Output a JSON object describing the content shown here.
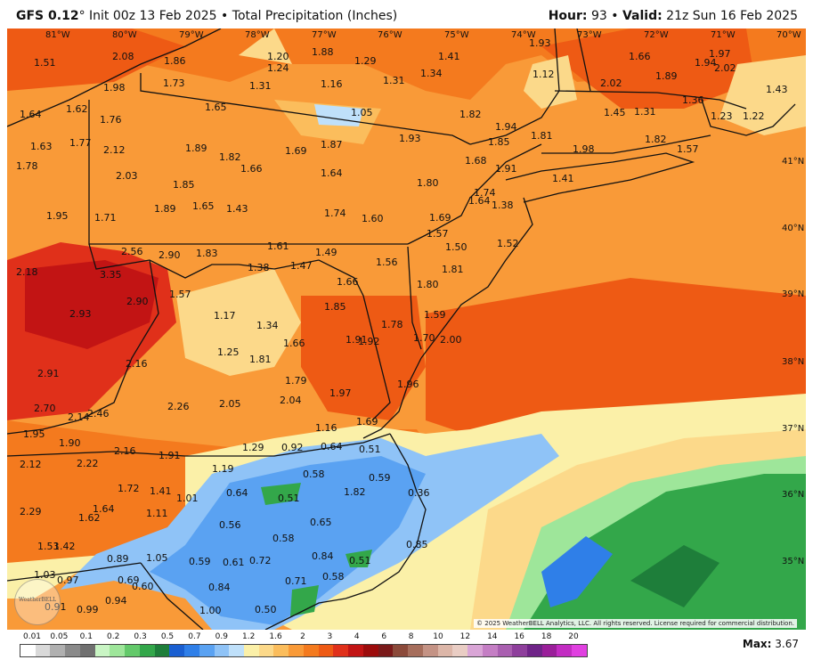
{
  "header": {
    "model": "GFS 0.12",
    "degree": "°",
    "init": "Init 00z 13 Feb 2025",
    "separator": "•",
    "product": "Total Precipitation (Inches)",
    "hour_label": "Hour:",
    "hour_value": "93",
    "valid_label": "Valid:",
    "valid_value": "21z Sun 16 Feb 2025"
  },
  "map": {
    "longitude_labels": [
      "81°W",
      "80°W",
      "79°W",
      "78°W",
      "77°W",
      "76°W",
      "75°W",
      "74°W",
      "73°W",
      "72°W",
      "71°W",
      "70°W"
    ],
    "latitude_labels": [
      "41°N",
      "40°N",
      "39°N",
      "38°N",
      "37°N",
      "36°N",
      "35°N"
    ],
    "point_values": [
      "1.51",
      "2.08",
      "1.86",
      "1.20",
      "1.88",
      "1.29",
      "1.41",
      "1.93",
      "1.66",
      "1.94",
      "1.97",
      "2.02",
      "1.24",
      "1.34",
      "1.12",
      "2.02",
      "1.89",
      "1.43",
      "1.98",
      "1.73",
      "1.31",
      "1.16",
      "1.31",
      "1.64",
      "1.62",
      "1.76",
      "1.65",
      "1.05",
      "1.82",
      "1.94",
      "1.45",
      "1.31",
      "1.36",
      "1.23",
      "1.22",
      "1.77",
      "1.81",
      "1.63",
      "2.12",
      "1.89",
      "1.69",
      "1.87",
      "1.93",
      "1.85",
      "1.98",
      "1.82",
      "1.57",
      "1.78",
      "1.82",
      "1.66",
      "1.64",
      "1.68",
      "1.91",
      "1.41",
      "2.03",
      "1.85",
      "1.80",
      "1.74",
      "1.38",
      "1.64",
      "1.95",
      "1.71",
      "1.89",
      "1.65",
      "1.43",
      "1.74",
      "1.60",
      "1.69",
      "1.57",
      "1.50",
      "1.52",
      "1.61",
      "2.56",
      "2.90",
      "1.83",
      "1.49",
      "2.18",
      "3.35",
      "1.38",
      "1.47",
      "1.56",
      "1.81",
      "2.90",
      "1.57",
      "1.66",
      "1.80",
      "2.93",
      "1.17",
      "1.85",
      "1.59",
      "1.34",
      "1.91",
      "1.92",
      "1.78",
      "1.70",
      "2.00",
      "1.66",
      "1.25",
      "1.81",
      "2.16",
      "1.79",
      "2.91",
      "1.97",
      "1.96",
      "2.70",
      "2.46",
      "2.14",
      "2.26",
      "2.05",
      "2.04",
      "1.69",
      "1.16",
      "1.95",
      "1.90",
      "2.16",
      "1.29",
      "0.92",
      "0.64",
      "0.51",
      "1.91",
      "2.12",
      "2.22",
      "1.19",
      "0.58",
      "0.59",
      "0.64",
      "0.51",
      "1.82",
      "0.36",
      "1.72",
      "1.41",
      "1.01",
      "2.29",
      "1.64",
      "1.62",
      "1.11",
      "0.56",
      "0.65",
      "1.53",
      "1.42",
      "0.58",
      "0.85",
      "0.89",
      "1.05",
      "0.59",
      "0.61",
      "0.72",
      "0.84",
      "0.51",
      "1.03",
      "0.97",
      "0.69",
      "0.60",
      "0.84",
      "0.58",
      "0.71",
      "0.91",
      "0.99",
      "0.94",
      "1.00",
      "0.50"
    ]
  },
  "legend": {
    "labels": [
      "0.01",
      "0.05",
      "0.1",
      "0.2",
      "0.3",
      "0.5",
      "0.7",
      "0.9",
      "1.2",
      "1.6",
      "2",
      "3",
      "4",
      "6",
      "8",
      "10",
      "12",
      "14",
      "16",
      "18",
      "20"
    ],
    "colors": [
      "#ffffff",
      "#d9d9d9",
      "#b0b0b0",
      "#8a8a8a",
      "#707070",
      "#c9f5c4",
      "#9ee69a",
      "#63c96a",
      "#33a74a",
      "#1e7e3a",
      "#1a5fd1",
      "#2f7fe8",
      "#5aa2f2",
      "#8fc3f7",
      "#bfe0fa",
      "#fbf0a8",
      "#fcd98a",
      "#fbbd5c",
      "#f99a38",
      "#f47a1e",
      "#ee5a14",
      "#e0301a",
      "#c21414",
      "#9c0c0c",
      "#7a1a1a",
      "#8b4a3a",
      "#a66e5c",
      "#c49385",
      "#dcb6a8",
      "#e9cdc4",
      "#d9a5d6",
      "#c47ec4",
      "#a95fb0",
      "#8e3f9c",
      "#6f2488",
      "#9a1f9a",
      "#c22cc2",
      "#e040e0"
    ],
    "max_label": "Max:",
    "max_value": "3.67"
  },
  "logo_text": "WeatherBELL",
  "copyright": "© 2025 WeatherBELL Analytics, LLC. All rights reserved. License required for commercial distribution."
}
